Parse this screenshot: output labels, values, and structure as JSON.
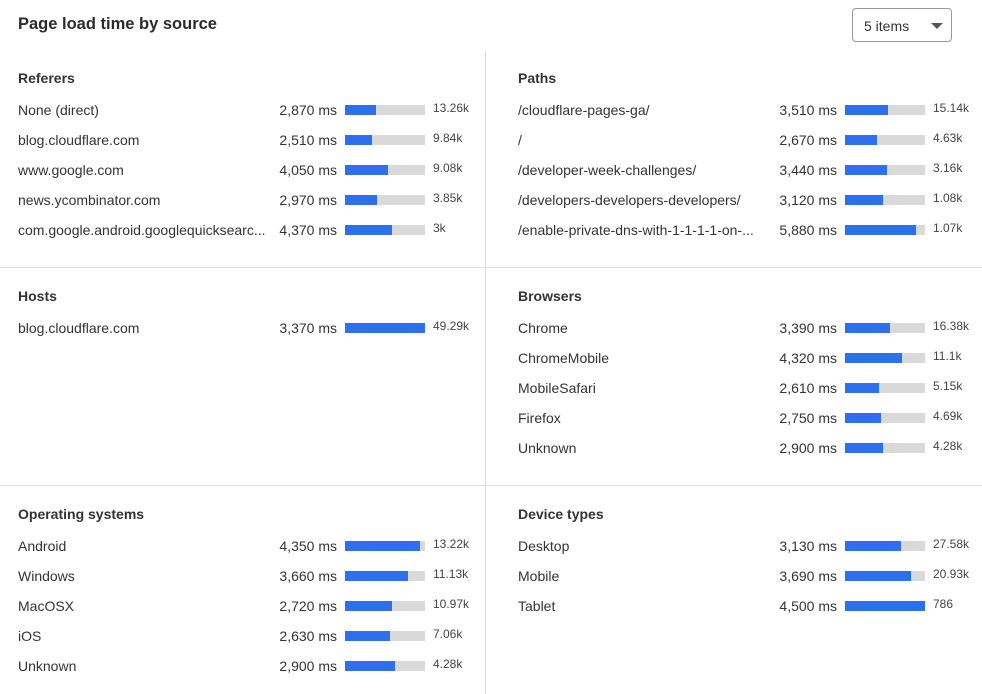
{
  "header": {
    "title": "Page load time by source",
    "items_select": "5 items"
  },
  "colors": {
    "bar_fill": "#2e6fed",
    "bar_track": "#d9d9d9"
  },
  "sections": [
    {
      "title": "Referers",
      "rows": [
        {
          "label": "None (direct)",
          "ms": "2,870 ms",
          "count": "13.26k",
          "fill": 0.39
        },
        {
          "label": "blog.cloudflare.com",
          "ms": "2,510 ms",
          "count": "9.84k",
          "fill": 0.34
        },
        {
          "label": "www.google.com",
          "ms": "4,050 ms",
          "count": "9.08k",
          "fill": 0.54
        },
        {
          "label": "news.ycombinator.com",
          "ms": "2,970 ms",
          "count": "3.85k",
          "fill": 0.4
        },
        {
          "label": "com.google.android.googlequicksearc...",
          "ms": "4,370 ms",
          "count": "3k",
          "fill": 0.59
        }
      ]
    },
    {
      "title": "Paths",
      "rows": [
        {
          "label": "/cloudflare-pages-ga/",
          "ms": "3,510 ms",
          "count": "15.14k",
          "fill": 0.54
        },
        {
          "label": "/",
          "ms": "2,670 ms",
          "count": "4.63k",
          "fill": 0.4
        },
        {
          "label": "/developer-week-challenges/",
          "ms": "3,440 ms",
          "count": "3.16k",
          "fill": 0.525
        },
        {
          "label": "/developers-developers-developers/",
          "ms": "3,120 ms",
          "count": "1.08k",
          "fill": 0.475
        },
        {
          "label": "/enable-private-dns-with-1-1-1-1-on-...",
          "ms": "5,880 ms",
          "count": "1.07k",
          "fill": 0.89
        }
      ]
    },
    {
      "title": "Hosts",
      "rows": [
        {
          "label": "blog.cloudflare.com",
          "ms": "3,370 ms",
          "count": "49.29k",
          "fill": 1.0
        }
      ]
    },
    {
      "title": "Browsers",
      "rows": [
        {
          "label": "Chrome",
          "ms": "3,390 ms",
          "count": "16.38k",
          "fill": 0.56
        },
        {
          "label": "ChromeMobile",
          "ms": "4,320 ms",
          "count": "11.1k",
          "fill": 0.71
        },
        {
          "label": "MobileSafari",
          "ms": "2,610 ms",
          "count": "5.15k",
          "fill": 0.43
        },
        {
          "label": "Firefox",
          "ms": "2,750 ms",
          "count": "4.69k",
          "fill": 0.45
        },
        {
          "label": "Unknown",
          "ms": "2,900 ms",
          "count": "4.28k",
          "fill": 0.475
        }
      ]
    },
    {
      "title": "Operating systems",
      "rows": [
        {
          "label": "Android",
          "ms": "4,350 ms",
          "count": "13.22k",
          "fill": 0.94
        },
        {
          "label": "Windows",
          "ms": "3,660 ms",
          "count": "11.13k",
          "fill": 0.79
        },
        {
          "label": "MacOSX",
          "ms": "2,720 ms",
          "count": "10.97k",
          "fill": 0.59
        },
        {
          "label": "iOS",
          "ms": "2,630 ms",
          "count": "7.06k",
          "fill": 0.56
        },
        {
          "label": "Unknown",
          "ms": "2,900 ms",
          "count": "4.28k",
          "fill": 0.625
        }
      ]
    },
    {
      "title": "Device types",
      "rows": [
        {
          "label": "Desktop",
          "ms": "3,130 ms",
          "count": "27.58k",
          "fill": 0.7
        },
        {
          "label": "Mobile",
          "ms": "3,690 ms",
          "count": "20.93k",
          "fill": 0.83
        },
        {
          "label": "Tablet",
          "ms": "4,500 ms",
          "count": "786",
          "fill": 1.0
        }
      ]
    }
  ]
}
